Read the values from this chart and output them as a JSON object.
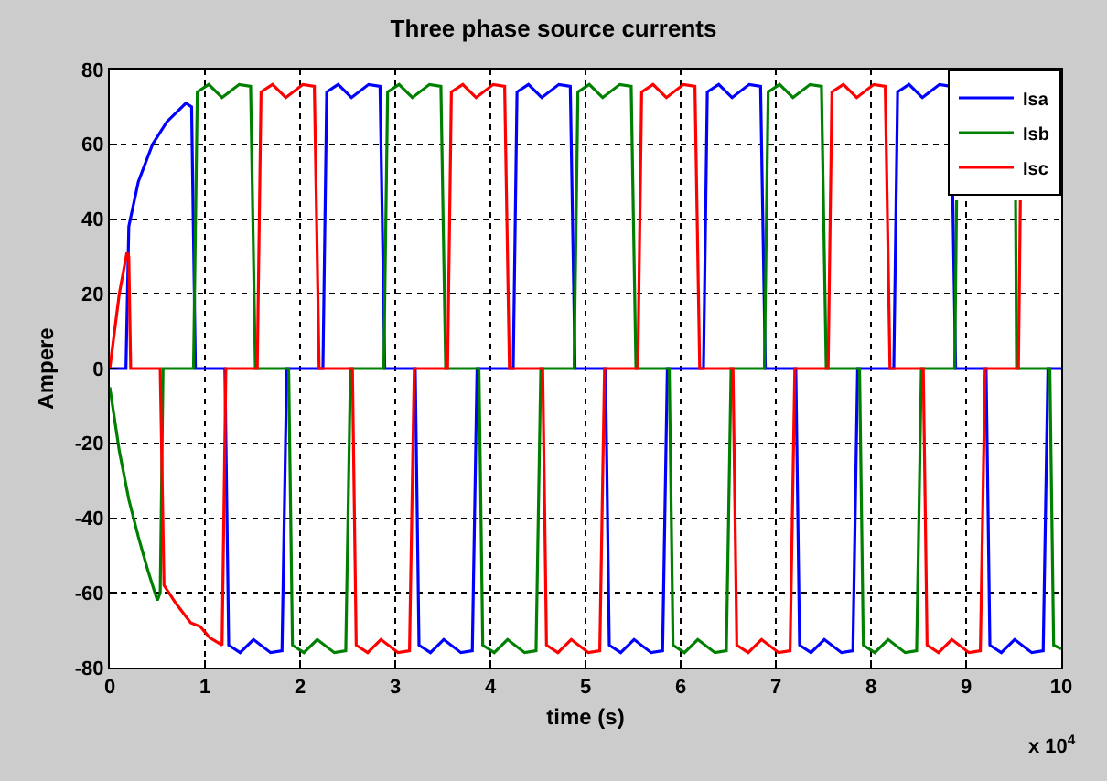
{
  "chart_data": {
    "type": "line",
    "title": "Three phase source currents",
    "xlabel": "time (s)",
    "ylabel": "Ampere",
    "annotations": [
      "x 10$^{4}$"
    ],
    "xlim": [
      0,
      10
    ],
    "xticks": [
      0,
      1,
      2,
      3,
      4,
      5,
      6,
      7,
      8,
      9,
      10
    ],
    "ylim": [
      -80,
      80
    ],
    "yticks": [
      -80,
      -60,
      -40,
      -20,
      0,
      20,
      40,
      60,
      80
    ],
    "grid": true,
    "legend": "top right",
    "marker": "none",
    "line_style": "solid",
    "series": [
      {
        "name": "Isa",
        "color": "#0000ff",
        "x": [
          0,
          0.17,
          0.2,
          0.3,
          0.45,
          0.6,
          0.8,
          0.86,
          0.9,
          1.21,
          1.25,
          1.37,
          1.51,
          1.69,
          1.81,
          1.86,
          2.24,
          2.28,
          2.4,
          2.54,
          2.72,
          2.84,
          2.89,
          3.21,
          3.25,
          3.37,
          3.51,
          3.69,
          3.81,
          3.86,
          4.24,
          4.28,
          4.4,
          4.54,
          4.72,
          4.84,
          4.89,
          5.21,
          5.25,
          5.37,
          5.51,
          5.69,
          5.81,
          5.86,
          6.24,
          6.28,
          6.4,
          6.54,
          6.72,
          6.84,
          6.89,
          7.21,
          7.25,
          7.37,
          7.51,
          7.69,
          7.81,
          7.86,
          8.24,
          8.28,
          8.4,
          8.54,
          8.72,
          8.84,
          8.89,
          9.21,
          9.25,
          9.37,
          9.51,
          9.69,
          9.81,
          9.86,
          10
        ],
        "values": [
          0,
          0,
          38,
          50,
          60,
          66,
          71,
          70,
          0,
          0,
          -74,
          -76,
          -72.5,
          -76,
          -75.5,
          0,
          0,
          74,
          76,
          72.5,
          76,
          75.5,
          0,
          0,
          -74,
          -76,
          -72.5,
          -76,
          -75.5,
          0,
          0,
          74,
          76,
          72.5,
          76,
          75.5,
          0,
          0,
          -74,
          -76,
          -72.5,
          -76,
          -75.5,
          0,
          0,
          74,
          76,
          72.5,
          76,
          75.5,
          0,
          0,
          -74,
          -76,
          -72.5,
          -76,
          -75.5,
          0,
          0,
          74,
          76,
          72.5,
          76,
          75.5,
          0,
          0,
          -74,
          -76,
          -72.5,
          -76,
          -75.5,
          0,
          0
        ]
      },
      {
        "name": "Isb",
        "color": "#008000",
        "x": [
          0,
          0.1,
          0.2,
          0.3,
          0.4,
          0.5,
          0.53,
          0.56,
          0.88,
          0.92,
          1.04,
          1.18,
          1.36,
          1.48,
          1.53,
          1.88,
          1.92,
          2.04,
          2.18,
          2.36,
          2.48,
          2.53,
          2.88,
          2.92,
          3.04,
          3.18,
          3.36,
          3.48,
          3.53,
          3.88,
          3.92,
          4.04,
          4.18,
          4.36,
          4.48,
          4.53,
          4.88,
          4.92,
          5.04,
          5.18,
          5.36,
          5.48,
          5.53,
          5.88,
          5.92,
          6.04,
          6.18,
          6.36,
          6.48,
          6.53,
          6.88,
          6.92,
          7.04,
          7.18,
          7.36,
          7.48,
          7.53,
          7.88,
          7.92,
          8.04,
          8.18,
          8.36,
          8.48,
          8.53,
          8.88,
          8.9,
          9.04,
          9.18,
          9.36,
          9.52,
          9.53,
          9.88,
          9.92,
          10
        ],
        "values": [
          -5,
          -22,
          -35,
          -45,
          -54,
          -62,
          -60,
          0,
          0,
          74,
          76,
          72.5,
          76,
          75.5,
          0,
          0,
          -74,
          -76,
          -72.5,
          -76,
          -75.5,
          0,
          0,
          74,
          76,
          72.5,
          76,
          75.5,
          0,
          0,
          -74,
          -76,
          -72.5,
          -76,
          -75.5,
          0,
          0,
          74,
          76,
          72.5,
          76,
          75.5,
          0,
          0,
          -74,
          -76,
          -72.5,
          -76,
          -75.5,
          0,
          0,
          74,
          76,
          72.5,
          76,
          75.5,
          0,
          0,
          -74,
          -76,
          -72.5,
          -76,
          -75.5,
          0,
          0,
          45,
          null,
          null,
          null,
          45,
          0,
          0,
          -74,
          -75
        ]
      },
      {
        "name": "Isc",
        "color": "#ff0000",
        "x": [
          0,
          0.1,
          0.18,
          0.2,
          0.22,
          0.53,
          0.57,
          0.7,
          0.85,
          0.95,
          1.05,
          1.18,
          1.22,
          1.55,
          1.59,
          1.71,
          1.85,
          2.03,
          2.15,
          2.2,
          2.55,
          2.59,
          2.71,
          2.85,
          3.03,
          3.15,
          3.2,
          3.55,
          3.59,
          3.71,
          3.85,
          4.03,
          4.15,
          4.2,
          4.55,
          4.59,
          4.71,
          4.85,
          5.03,
          5.15,
          5.2,
          5.55,
          5.59,
          5.71,
          5.85,
          6.03,
          6.15,
          6.2,
          6.55,
          6.59,
          6.71,
          6.85,
          7.03,
          7.15,
          7.2,
          7.55,
          7.59,
          7.71,
          7.85,
          8.03,
          8.15,
          8.2,
          8.55,
          8.59,
          8.71,
          8.85,
          9.03,
          9.15,
          9.2,
          9.55,
          9.57
        ],
        "values": [
          0,
          20,
          31,
          30,
          0,
          0,
          -58,
          -63,
          -68,
          -69,
          -72,
          -74,
          0,
          0,
          74,
          76,
          72.5,
          76,
          75.5,
          0,
          0,
          -74,
          -76,
          -72.5,
          -76,
          -75.5,
          0,
          0,
          74,
          76,
          72.5,
          76,
          75.5,
          0,
          0,
          -74,
          -76,
          -72.5,
          -76,
          -75.5,
          0,
          0,
          74,
          76,
          72.5,
          76,
          75.5,
          0,
          0,
          -74,
          -76,
          -72.5,
          -76,
          -75.5,
          0,
          0,
          74,
          76,
          72.5,
          76,
          75.5,
          0,
          0,
          -74,
          -76,
          -72.5,
          -76,
          -75.5,
          0,
          0,
          45
        ]
      }
    ]
  }
}
